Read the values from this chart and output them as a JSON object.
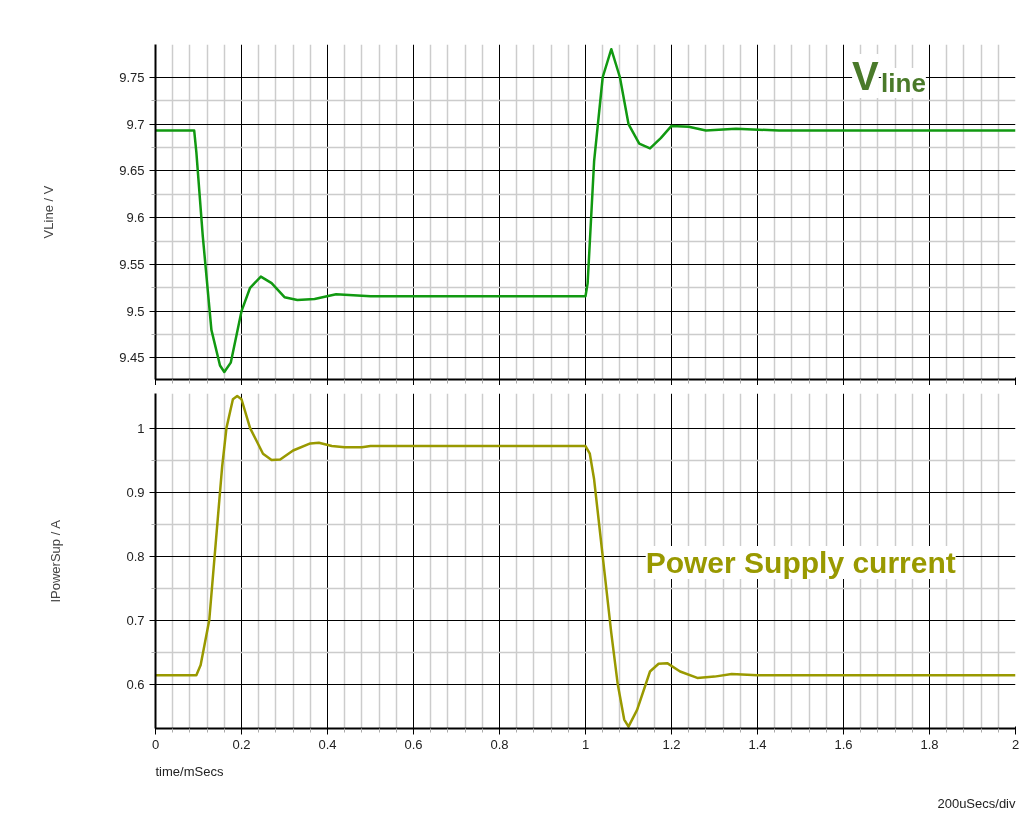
{
  "chart_data": [
    {
      "type": "line",
      "ylabel": "VLine / V",
      "xlim": [
        0,
        2
      ],
      "xticks": [
        0,
        0.2,
        0.4,
        0.6,
        0.8,
        1,
        1.2,
        1.4,
        1.6,
        1.8,
        2
      ],
      "ylim": [
        9.427,
        9.785
      ],
      "yticks": [
        9.45,
        9.5,
        9.55,
        9.6,
        9.65,
        9.7,
        9.75
      ],
      "tick_labels": "y",
      "grid": true,
      "annotations": [
        "V$_{line}$"
      ],
      "series": [
        {
          "color": "#119911",
          "x": [
            0,
            0.09,
            0.095,
            0.11,
            0.13,
            0.15,
            0.16,
            0.175,
            0.2,
            0.22,
            0.245,
            0.27,
            0.3,
            0.33,
            0.37,
            0.42,
            0.5,
            1.0,
            1.005,
            1.02,
            1.04,
            1.06,
            1.08,
            1.1,
            1.125,
            1.15,
            1.175,
            1.2,
            1.24,
            1.28,
            1.35,
            1.45,
            2
          ],
          "values": [
            9.693,
            9.693,
            9.67,
            9.58,
            9.48,
            9.442,
            9.435,
            9.445,
            9.5,
            9.525,
            9.537,
            9.53,
            9.515,
            9.512,
            9.513,
            9.518,
            9.516,
            9.516,
            9.53,
            9.66,
            9.75,
            9.78,
            9.75,
            9.7,
            9.679,
            9.674,
            9.685,
            9.698,
            9.697,
            9.693,
            9.695,
            9.693,
            9.693
          ]
        }
      ]
    },
    {
      "type": "line",
      "xlabel": "time/mSecs",
      "ylabel": "IPowerSup / A",
      "xlim": [
        0,
        2
      ],
      "xticks": [
        0,
        0.2,
        0.4,
        0.6,
        0.8,
        1,
        1.2,
        1.4,
        1.6,
        1.8,
        2
      ],
      "ylim": [
        0.531,
        1.054
      ],
      "yticks": [
        0.6,
        0.7,
        0.8,
        0.9,
        1
      ],
      "grid": true,
      "annotations": [
        "Power Supply current",
        "200uSecs/div"
      ],
      "series": [
        {
          "color": "#999900",
          "x": [
            0,
            0.095,
            0.105,
            0.125,
            0.14,
            0.155,
            0.165,
            0.18,
            0.19,
            0.2,
            0.22,
            0.25,
            0.27,
            0.29,
            0.32,
            0.36,
            0.38,
            0.41,
            0.44,
            0.48,
            0.5,
            1.0,
            1.01,
            1.02,
            1.03,
            1.045,
            1.06,
            1.075,
            1.09,
            1.1,
            1.12,
            1.15,
            1.17,
            1.19,
            1.22,
            1.26,
            1.3,
            1.34,
            1.4,
            2
          ],
          "values": [
            0.614,
            0.614,
            0.63,
            0.7,
            0.82,
            0.94,
            1.0,
            1.045,
            1.05,
            1.045,
            1.0,
            0.96,
            0.95,
            0.951,
            0.965,
            0.976,
            0.977,
            0.972,
            0.97,
            0.97,
            0.972,
            0.972,
            0.96,
            0.92,
            0.86,
            0.77,
            0.68,
            0.6,
            0.545,
            0.534,
            0.56,
            0.62,
            0.632,
            0.633,
            0.62,
            0.61,
            0.612,
            0.616,
            0.614,
            0.614
          ]
        }
      ]
    }
  ]
}
